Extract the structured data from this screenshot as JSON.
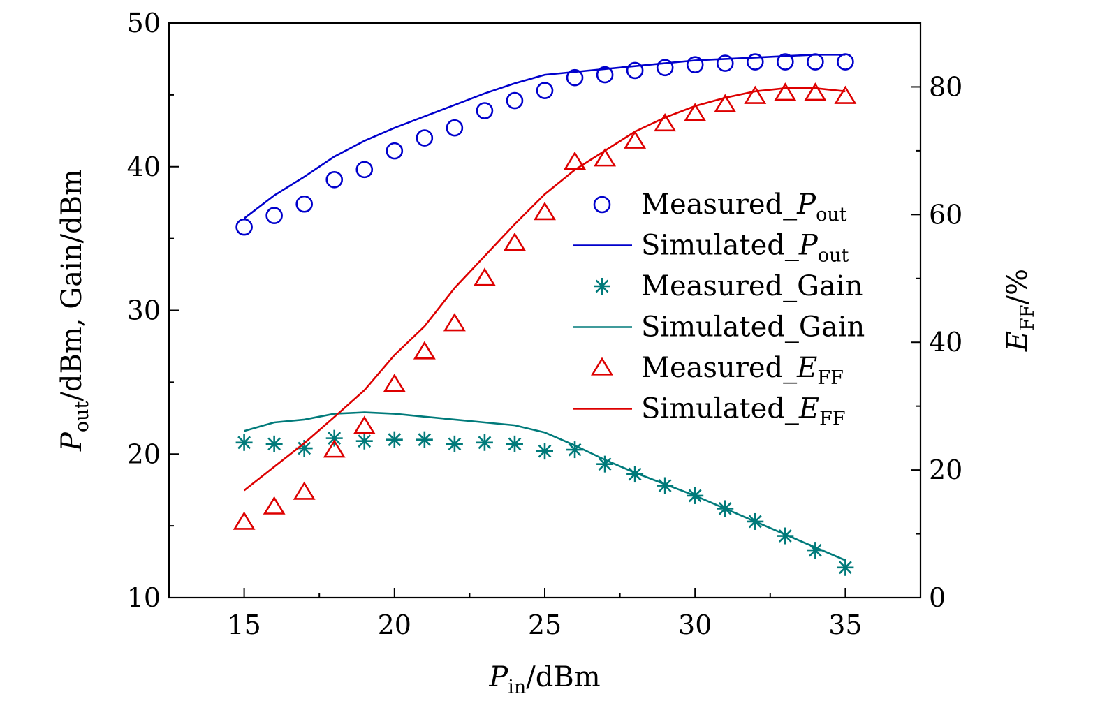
{
  "chart_data": {
    "type": "line",
    "xlabel": {
      "main": "P",
      "sub": "in",
      "unit": "/dBm"
    },
    "ylabel_left": {
      "main": "P",
      "sub": "out",
      "rest": "/dBm, Gain/dBm"
    },
    "ylabel_right": {
      "main": "E",
      "sub": "FF",
      "unit": "/%"
    },
    "xlim": [
      12.5,
      37.5
    ],
    "ylim_left": [
      10,
      50
    ],
    "ylim_right": [
      0,
      90
    ],
    "x_ticks": [
      15,
      20,
      25,
      30,
      35
    ],
    "y_left_ticks": [
      10,
      20,
      30,
      40,
      50
    ],
    "y_right_ticks": [
      0,
      20,
      40,
      60,
      80
    ],
    "legend_position": "right",
    "series": [
      {
        "name": "Measured_Pout",
        "legend": {
          "prefix": "Measured_",
          "main": "P",
          "sub": "out"
        },
        "kind": "scatter",
        "marker": "circle",
        "color": "#0000cc",
        "axis": "left",
        "x": [
          15,
          16,
          17,
          18,
          19,
          20,
          21,
          22,
          23,
          24,
          25,
          26,
          27,
          28,
          29,
          30,
          31,
          32,
          33,
          34,
          35
        ],
        "y": [
          35.8,
          36.6,
          37.4,
          39.1,
          39.8,
          41.1,
          42.0,
          42.7,
          43.9,
          44.6,
          45.3,
          46.2,
          46.4,
          46.7,
          46.9,
          47.1,
          47.2,
          47.3,
          47.3,
          47.3,
          47.3
        ]
      },
      {
        "name": "Simulated_Pout",
        "legend": {
          "prefix": "Simulated_",
          "main": "P",
          "sub": "out"
        },
        "kind": "line",
        "color": "#0000cc",
        "axis": "left",
        "x": [
          15,
          16,
          17,
          18,
          19,
          20,
          21,
          22,
          23,
          24,
          25,
          26,
          27,
          28,
          29,
          30,
          31,
          32,
          33,
          34,
          35
        ],
        "y": [
          36.4,
          38.0,
          39.3,
          40.7,
          41.8,
          42.7,
          43.5,
          44.3,
          45.1,
          45.8,
          46.4,
          46.6,
          46.8,
          47.0,
          47.2,
          47.4,
          47.5,
          47.6,
          47.7,
          47.8,
          47.8
        ]
      },
      {
        "name": "Measured_Gain",
        "legend": {
          "prefix": "Measured_",
          "main": "Gain",
          "sub": ""
        },
        "kind": "scatter",
        "marker": "asterisk",
        "color": "#007a7a",
        "axis": "left",
        "x": [
          15,
          16,
          17,
          18,
          19,
          20,
          21,
          22,
          23,
          24,
          25,
          26,
          27,
          28,
          29,
          30,
          31,
          32,
          33,
          34,
          35
        ],
        "y": [
          20.8,
          20.7,
          20.4,
          21.1,
          20.9,
          21.0,
          21.0,
          20.7,
          20.8,
          20.7,
          20.2,
          20.3,
          19.3,
          18.6,
          17.8,
          17.1,
          16.2,
          15.3,
          14.3,
          13.3,
          12.1
        ]
      },
      {
        "name": "Simulated_Gain",
        "legend": {
          "prefix": "Simulated_",
          "main": "Gain",
          "sub": ""
        },
        "kind": "line",
        "color": "#007a7a",
        "axis": "left",
        "x": [
          15,
          16,
          17,
          18,
          19,
          20,
          21,
          22,
          23,
          24,
          25,
          26,
          27,
          28,
          29,
          30,
          31,
          32,
          33,
          34,
          35
        ],
        "y": [
          21.6,
          22.2,
          22.4,
          22.8,
          22.9,
          22.8,
          22.6,
          22.4,
          22.2,
          22.0,
          21.5,
          20.6,
          19.6,
          18.7,
          17.9,
          17.1,
          16.2,
          15.3,
          14.4,
          13.5,
          12.6
        ]
      },
      {
        "name": "Measured_EFF",
        "legend": {
          "prefix": "Measured_",
          "main": "E",
          "sub": "FF"
        },
        "kind": "scatter",
        "marker": "triangle",
        "color": "#dd0000",
        "axis": "right",
        "x": [
          15,
          16,
          17,
          18,
          19,
          20,
          21,
          22,
          23,
          24,
          25,
          26,
          27,
          28,
          29,
          30,
          31,
          32,
          33,
          34,
          35
        ],
        "y": [
          11.8,
          14.2,
          16.5,
          23.1,
          26.8,
          33.4,
          38.5,
          42.9,
          50.0,
          55.5,
          60.3,
          68.2,
          68.7,
          71.5,
          74.2,
          75.8,
          77.2,
          78.5,
          79.0,
          79.0,
          78.5
        ]
      },
      {
        "name": "Simulated_EFF",
        "legend": {
          "prefix": "Simulated_",
          "main": "E",
          "sub": "FF"
        },
        "kind": "line",
        "color": "#dd0000",
        "axis": "right",
        "x": [
          15,
          16,
          17,
          18,
          19,
          20,
          21,
          22,
          23,
          24,
          25,
          26,
          27,
          28,
          29,
          30,
          31,
          32,
          33,
          34,
          35
        ],
        "y": [
          16.8,
          20.5,
          24.2,
          28.3,
          32.5,
          38.0,
          42.5,
          48.5,
          53.5,
          58.5,
          63.2,
          67.0,
          70.0,
          73.0,
          75.2,
          77.0,
          78.3,
          79.3,
          79.8,
          79.8,
          79.3
        ]
      }
    ]
  }
}
